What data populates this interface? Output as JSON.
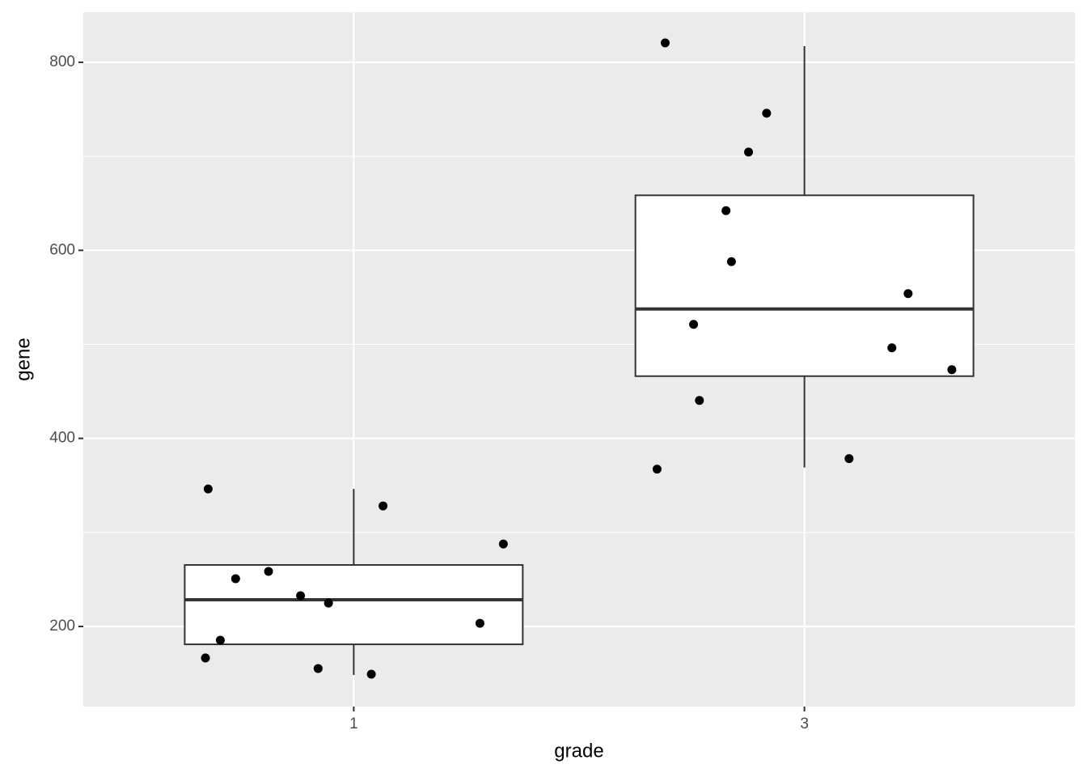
{
  "chart_data": {
    "type": "box",
    "x_label": "grade",
    "y_label": "gene",
    "categories": [
      "1",
      "3"
    ],
    "boxes": [
      {
        "whisker_low": 148.4,
        "q1": 181,
        "median": 228.4,
        "q3": 265.4,
        "whisker_high": 346.2
      },
      {
        "whisker_low": 369,
        "q1": 466.2,
        "median": 537.6,
        "q3": 658.5,
        "whisker_high": 817.2
      }
    ],
    "points": {
      "x": [
        0.677,
        0.671,
        0.704,
        0.738,
        0.811,
        0.882,
        0.921,
        0.944,
        1.039,
        1.065,
        1.28,
        1.332,
        1.691,
        1.916,
        1.876,
        1.826,
        1.838,
        1.754,
        1.767,
        1.673,
        2.099,
        2.194,
        2.23,
        2.327
      ],
      "y": [
        346.2,
        166.5,
        185.4,
        250.8,
        258.5,
        232.7,
        155.3,
        224.9,
        149.2,
        328.2,
        203.4,
        287.7,
        820.6,
        745.8,
        704.5,
        642.2,
        588.0,
        521.3,
        440.4,
        367.3,
        378.5,
        496.3,
        554.0,
        473.1
      ]
    },
    "xlim": [
      0.4,
      2.6
    ],
    "ylim": [
      114.8,
      853.3
    ],
    "yticks": [
      200,
      400,
      600,
      800
    ],
    "y_minor_ticks": [
      300,
      500,
      700
    ],
    "grid": true
  }
}
